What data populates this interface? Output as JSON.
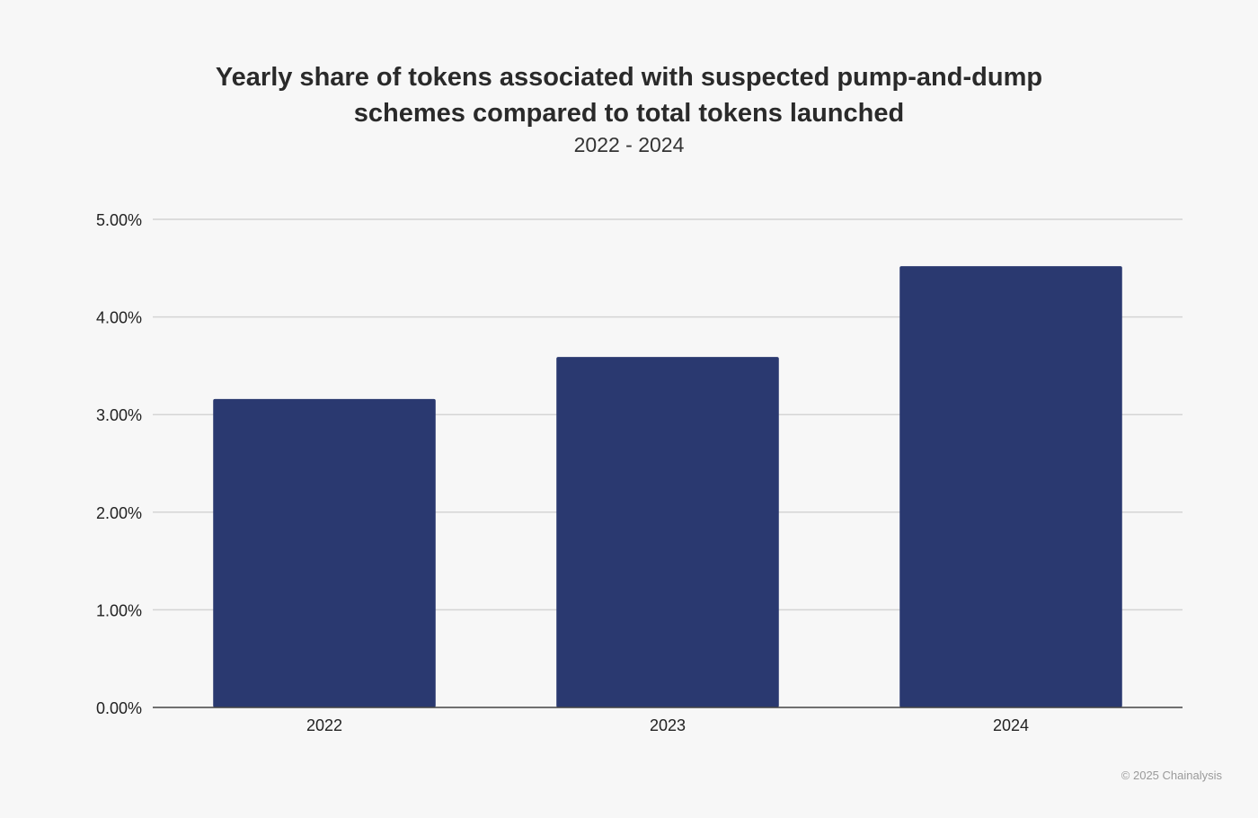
{
  "chart_data": {
    "type": "bar",
    "title": "Yearly share of tokens associated with suspected pump-and-dump schemes compared to total tokens launched",
    "subtitle": "2022 - 2024",
    "categories": [
      "2022",
      "2023",
      "2024"
    ],
    "values": [
      3.16,
      3.59,
      4.52
    ],
    "yticks": [
      "0.00%",
      "1.00%",
      "2.00%",
      "3.00%",
      "4.00%",
      "5.00%"
    ],
    "ylim": [
      0,
      5
    ],
    "xlabel": "",
    "ylabel": "",
    "grid": true,
    "bar_color": "#2a3970"
  },
  "footer": {
    "copyright": "© 2025 Chainalysis"
  }
}
